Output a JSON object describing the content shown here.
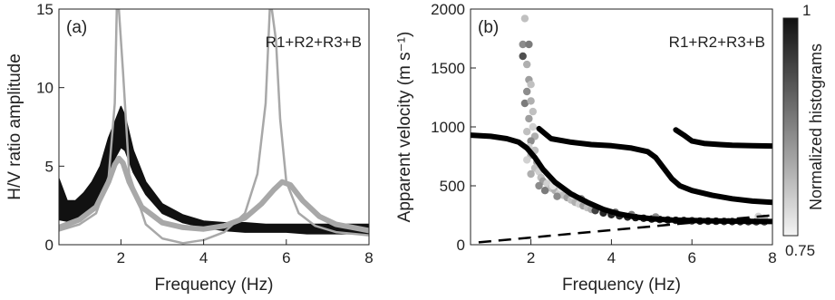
{
  "chart_data": [
    {
      "type": "line",
      "panel_label": "(a)",
      "annotation": "R1+R2+R3+B",
      "xlabel": "Frequency (Hz)",
      "ylabel": "H/V ratio amplitude",
      "xlim": [
        0.5,
        8
      ],
      "ylim": [
        0,
        15
      ],
      "xticks": [
        "2",
        "4",
        "6",
        "8"
      ],
      "yticks": [
        "0",
        "5",
        "10",
        "15"
      ],
      "grid": false,
      "series": [
        {
          "color": "#111111",
          "style": "band",
          "x": [
            0.5,
            0.7,
            0.9,
            1.1,
            1.3,
            1.5,
            1.7,
            1.85,
            2.0,
            2.1,
            2.3,
            2.6,
            3.0,
            3.5,
            4.0,
            4.5,
            5.0,
            5.5,
            6.0,
            6.5,
            7.0,
            7.5,
            8.0
          ],
          "y_upper": [
            4.2,
            2.8,
            2.8,
            3.3,
            4.0,
            5.0,
            6.8,
            7.8,
            8.8,
            8.2,
            6.0,
            4.0,
            2.6,
            1.9,
            1.5,
            1.4,
            1.4,
            1.3,
            1.3,
            1.3,
            1.3,
            1.3,
            1.3
          ],
          "y_lower": [
            1.6,
            1.5,
            1.6,
            2.0,
            2.4,
            3.0,
            4.2,
            5.5,
            6.2,
            6.0,
            4.6,
            3.2,
            2.0,
            1.4,
            1.1,
            0.9,
            0.8,
            0.8,
            0.8,
            0.7,
            0.7,
            0.7,
            0.7
          ]
        },
        {
          "color": "#a8a8a8",
          "style": "thin",
          "x": [
            0.5,
            1.0,
            1.4,
            1.7,
            1.85,
            1.9,
            1.95,
            2.05,
            2.2,
            2.6,
            3.0,
            3.5,
            4.0,
            4.5,
            5.0,
            5.3,
            5.5,
            5.6,
            5.65,
            5.75,
            5.85,
            6.0,
            6.3,
            6.7,
            7.2,
            8.0
          ],
          "y": [
            0.9,
            1.3,
            2.0,
            4.2,
            9.0,
            15.0,
            15.0,
            11.0,
            4.5,
            1.3,
            0.4,
            0.1,
            0.3,
            0.8,
            2.0,
            4.5,
            9.0,
            15.0,
            15.0,
            13.0,
            8.0,
            4.0,
            2.0,
            1.2,
            0.8,
            0.6
          ]
        },
        {
          "color": "#a8a8a8",
          "style": "thick",
          "x": [
            0.5,
            1.0,
            1.4,
            1.7,
            1.85,
            1.95,
            2.05,
            2.2,
            2.5,
            3.0,
            3.5,
            4.0,
            4.5,
            5.0,
            5.4,
            5.7,
            5.9,
            6.1,
            6.4,
            6.8,
            7.2,
            8.0
          ],
          "y": [
            1.1,
            1.6,
            2.4,
            4.0,
            5.1,
            5.5,
            5.2,
            4.0,
            2.4,
            1.4,
            1.1,
            1.0,
            1.2,
            1.7,
            2.6,
            3.5,
            4.0,
            3.8,
            2.8,
            1.8,
            1.3,
            0.9
          ]
        }
      ]
    },
    {
      "type": "scatter",
      "panel_label": "(b)",
      "annotation": "R1+R2+R3+B",
      "xlabel": "Frequency (Hz)",
      "ylabel": "Apparent velocity (m s⁻¹)",
      "xlim": [
        0.5,
        8
      ],
      "ylim": [
        0,
        2000
      ],
      "xticks": [
        "2",
        "4",
        "6",
        "8"
      ],
      "yticks": [
        "0",
        "500",
        "1000",
        "1500",
        "2000"
      ],
      "grid": false,
      "colorbar": {
        "label": "Normalized histograms",
        "min": 0.75,
        "max": 1,
        "min_label": "0.75",
        "max_label": "1",
        "gradient": [
          "#f4f4f4",
          "#111111"
        ]
      },
      "points": [
        {
          "x": 1.85,
          "y": 1920,
          "c": 0.8
        },
        {
          "x": 1.8,
          "y": 1700,
          "c": 0.86
        },
        {
          "x": 1.95,
          "y": 1700,
          "c": 0.88
        },
        {
          "x": 1.8,
          "y": 1600,
          "c": 0.93
        },
        {
          "x": 1.9,
          "y": 1530,
          "c": 0.82
        },
        {
          "x": 1.95,
          "y": 1400,
          "c": 0.84
        },
        {
          "x": 2.0,
          "y": 1360,
          "c": 0.8
        },
        {
          "x": 1.9,
          "y": 1300,
          "c": 0.86
        },
        {
          "x": 1.85,
          "y": 1200,
          "c": 0.88
        },
        {
          "x": 2.0,
          "y": 1220,
          "c": 0.82
        },
        {
          "x": 2.05,
          "y": 1130,
          "c": 0.8
        },
        {
          "x": 1.95,
          "y": 1070,
          "c": 0.84
        },
        {
          "x": 2.05,
          "y": 1000,
          "c": 0.78
        },
        {
          "x": 1.9,
          "y": 960,
          "c": 0.8
        },
        {
          "x": 2.1,
          "y": 920,
          "c": 0.82
        },
        {
          "x": 2.0,
          "y": 880,
          "c": 0.86
        },
        {
          "x": 1.95,
          "y": 830,
          "c": 0.78
        },
        {
          "x": 2.1,
          "y": 800,
          "c": 0.8
        },
        {
          "x": 2.0,
          "y": 760,
          "c": 0.82
        },
        {
          "x": 1.9,
          "y": 720,
          "c": 0.78
        },
        {
          "x": 2.15,
          "y": 700,
          "c": 0.84
        },
        {
          "x": 2.1,
          "y": 650,
          "c": 0.8
        },
        {
          "x": 2.2,
          "y": 620,
          "c": 0.78
        },
        {
          "x": 2.0,
          "y": 600,
          "c": 0.82
        },
        {
          "x": 2.25,
          "y": 570,
          "c": 0.8
        },
        {
          "x": 2.3,
          "y": 540,
          "c": 0.84
        },
        {
          "x": 2.4,
          "y": 520,
          "c": 0.78
        },
        {
          "x": 2.2,
          "y": 500,
          "c": 0.86
        },
        {
          "x": 2.5,
          "y": 480,
          "c": 0.8
        },
        {
          "x": 2.6,
          "y": 460,
          "c": 0.82
        },
        {
          "x": 2.7,
          "y": 440,
          "c": 0.78
        },
        {
          "x": 2.8,
          "y": 420,
          "c": 0.8
        },
        {
          "x": 2.9,
          "y": 400,
          "c": 0.84
        },
        {
          "x": 3.0,
          "y": 380,
          "c": 0.8
        },
        {
          "x": 3.1,
          "y": 360,
          "c": 0.82
        },
        {
          "x": 3.2,
          "y": 345,
          "c": 0.78
        },
        {
          "x": 3.3,
          "y": 330,
          "c": 0.84
        },
        {
          "x": 3.4,
          "y": 315,
          "c": 0.8
        },
        {
          "x": 3.5,
          "y": 300,
          "c": 0.82
        },
        {
          "x": 2.35,
          "y": 460,
          "c": 0.88
        },
        {
          "x": 2.55,
          "y": 500,
          "c": 0.76
        },
        {
          "x": 2.65,
          "y": 410,
          "c": 0.86
        },
        {
          "x": 2.75,
          "y": 480,
          "c": 0.76
        },
        {
          "x": 3.05,
          "y": 420,
          "c": 0.76
        },
        {
          "x": 3.25,
          "y": 390,
          "c": 0.86
        },
        {
          "x": 3.6,
          "y": 290,
          "c": 0.95
        },
        {
          "x": 3.8,
          "y": 270,
          "c": 0.98
        },
        {
          "x": 4.0,
          "y": 255,
          "c": 0.98
        },
        {
          "x": 4.2,
          "y": 245,
          "c": 0.97
        },
        {
          "x": 4.4,
          "y": 235,
          "c": 0.98
        },
        {
          "x": 4.6,
          "y": 230,
          "c": 0.99
        },
        {
          "x": 4.8,
          "y": 225,
          "c": 0.98
        },
        {
          "x": 5.0,
          "y": 218,
          "c": 0.99
        },
        {
          "x": 5.2,
          "y": 214,
          "c": 0.98
        },
        {
          "x": 5.4,
          "y": 210,
          "c": 0.99
        },
        {
          "x": 5.6,
          "y": 207,
          "c": 0.98
        },
        {
          "x": 5.8,
          "y": 205,
          "c": 0.99
        },
        {
          "x": 6.0,
          "y": 203,
          "c": 0.98
        },
        {
          "x": 6.2,
          "y": 201,
          "c": 0.99
        },
        {
          "x": 6.4,
          "y": 200,
          "c": 0.98
        },
        {
          "x": 6.6,
          "y": 199,
          "c": 0.99
        },
        {
          "x": 6.8,
          "y": 198,
          "c": 0.98
        },
        {
          "x": 7.0,
          "y": 197,
          "c": 0.99
        },
        {
          "x": 7.2,
          "y": 196,
          "c": 0.98
        },
        {
          "x": 7.4,
          "y": 196,
          "c": 0.97
        },
        {
          "x": 7.6,
          "y": 195,
          "c": 0.96
        },
        {
          "x": 7.8,
          "y": 195,
          "c": 0.95
        },
        {
          "x": 7.65,
          "y": 240,
          "c": 0.78
        },
        {
          "x": 7.8,
          "y": 225,
          "c": 0.8
        },
        {
          "x": 4.1,
          "y": 275,
          "c": 0.9
        },
        {
          "x": 4.5,
          "y": 255,
          "c": 0.88
        },
        {
          "x": 5.1,
          "y": 235,
          "c": 0.86
        }
      ],
      "series": [
        {
          "color": "#000000",
          "style": "thick",
          "x": [
            0.5,
            1.0,
            1.4,
            1.7,
            1.9,
            2.1,
            2.3,
            2.6,
            3.0,
            3.4,
            3.8,
            4.2,
            4.6,
            5.0,
            5.5,
            6.0,
            6.5,
            7.0,
            7.5,
            8.0
          ],
          "y": [
            930,
            920,
            900,
            870,
            820,
            740,
            640,
            530,
            430,
            360,
            300,
            260,
            235,
            220,
            210,
            205,
            202,
            200,
            198,
            197
          ]
        },
        {
          "color": "#000000",
          "style": "thick",
          "x": [
            2.2,
            2.5,
            3.0,
            3.5,
            4.0,
            4.5,
            4.9,
            5.1,
            5.3,
            5.5,
            5.7,
            6.0,
            6.5,
            7.0,
            7.5,
            8.0
          ],
          "y": [
            985,
            900,
            870,
            850,
            840,
            820,
            790,
            740,
            650,
            560,
            500,
            460,
            420,
            390,
            370,
            360
          ]
        },
        {
          "color": "#000000",
          "style": "thick",
          "x": [
            5.6,
            5.8,
            6.0,
            6.3,
            6.7,
            7.0,
            7.5,
            8.0
          ],
          "y": [
            975,
            930,
            880,
            860,
            850,
            845,
            840,
            838
          ]
        },
        {
          "color": "#000000",
          "style": "dashed",
          "x": [
            0.7,
            8.0
          ],
          "y": [
            20,
            250
          ]
        }
      ]
    }
  ]
}
